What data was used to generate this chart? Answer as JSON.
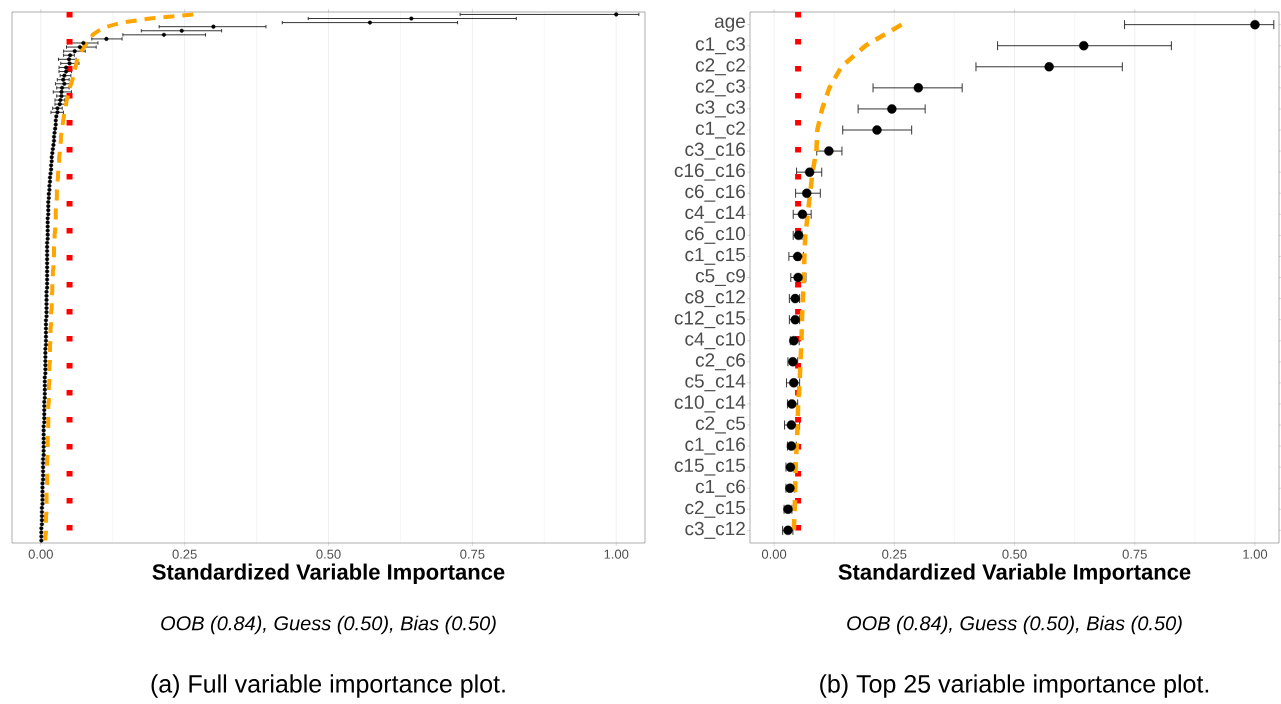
{
  "chart_data": [
    {
      "type": "scatter",
      "orientation": "horizontal",
      "xlabel": "Standardized Variable Importance",
      "annotations": [
        "OOB (0.84), Guess (0.50), Bias (0.50)",
        "(a) Full variable importance plot."
      ],
      "categories": [
        null,
        null,
        null,
        null,
        null,
        null,
        null,
        null,
        null,
        null,
        null,
        null,
        null,
        null,
        null,
        null,
        null,
        null,
        null,
        null,
        null,
        null,
        null,
        null,
        null,
        null,
        null,
        null,
        null,
        null,
        null,
        null,
        null,
        null,
        null,
        null,
        null,
        null,
        null,
        null,
        null,
        null,
        null,
        null,
        null,
        null,
        null,
        null,
        null,
        null,
        null,
        null,
        null,
        null,
        null,
        null,
        null,
        null,
        null,
        null,
        null,
        null,
        null,
        null,
        null,
        null,
        null,
        null,
        null,
        null,
        null,
        null,
        null,
        null,
        null,
        null,
        null,
        null,
        null,
        null,
        null,
        null,
        null,
        null,
        null,
        null,
        null,
        null,
        null,
        null,
        null,
        null,
        null,
        null,
        null,
        null,
        null,
        null,
        null,
        null,
        null,
        null,
        null,
        null,
        null,
        null,
        null,
        null,
        null,
        null,
        null,
        null,
        null,
        null,
        null,
        null,
        null,
        null,
        null,
        null,
        null,
        null,
        null,
        null,
        null,
        null,
        null,
        null,
        null,
        null
      ],
      "series": [
        {
          "type": "scatter",
          "color": "#000000",
          "marker": "circle",
          "values": [
            1.0,
            0.644,
            0.572,
            0.3,
            0.245,
            0.214,
            0.114,
            0.074,
            0.068,
            0.059,
            0.051,
            0.049,
            0.05,
            0.044,
            0.044,
            0.041,
            0.039,
            0.041,
            0.037,
            0.036,
            0.036,
            0.034,
            0.033,
            0.029,
            0.029,
            0.027,
            0.026,
            0.026,
            0.025,
            0.024,
            0.023,
            0.023,
            0.022,
            0.021,
            0.02,
            0.019,
            0.019,
            0.018,
            0.018,
            0.017,
            0.016,
            0.016,
            0.015,
            0.015,
            0.014,
            0.014,
            0.013,
            0.013,
            0.013,
            0.013,
            0.012,
            0.012,
            0.012,
            0.012,
            0.012,
            0.012,
            0.011,
            0.011,
            0.011,
            0.011,
            0.011,
            0.011,
            0.011,
            0.011,
            0.011,
            0.011,
            0.011,
            0.011,
            0.01,
            0.01,
            0.01,
            0.01,
            0.01,
            0.01,
            0.01,
            0.009,
            0.009,
            0.009,
            0.009,
            0.009,
            0.009,
            0.009,
            0.008,
            0.008,
            0.008,
            0.008,
            0.008,
            0.008,
            0.008,
            0.007,
            0.007,
            0.007,
            0.007,
            0.007,
            0.007,
            0.006,
            0.006,
            0.006,
            0.006,
            0.006,
            0.006,
            0.005,
            0.005,
            0.005,
            0.005,
            0.005,
            0.005,
            0.005,
            0.005,
            0.004,
            0.004,
            0.004,
            0.004,
            0.004,
            0.004,
            0.003,
            0.003,
            0.003,
            0.003,
            0.003,
            0.003,
            0.002,
            0.002,
            0.002,
            0.002,
            0.002,
            0.001,
            0.001,
            0.001,
            0.001
          ],
          "errors": [
            [
              0.728,
              1.04
            ],
            [
              0.464,
              0.827
            ],
            [
              0.419,
              0.725
            ],
            [
              0.205,
              0.392
            ],
            [
              0.174,
              0.315
            ],
            [
              0.142,
              0.287
            ],
            [
              0.088,
              0.142
            ],
            [
              0.046,
              0.1
            ],
            [
              0.044,
              0.097
            ],
            [
              0.039,
              0.078
            ],
            [
              0.039,
              0.059
            ],
            [
              0.03,
              0.062
            ],
            [
              0.034,
              0.067
            ],
            [
              0.031,
              0.054
            ],
            [
              0.031,
              0.054
            ],
            [
              0.033,
              0.053
            ],
            [
              0.028,
              0.05
            ],
            [
              0.025,
              0.054
            ],
            [
              0.027,
              0.05
            ],
            [
              0.021,
              0.054
            ],
            [
              0.027,
              0.047
            ],
            [
              0.024,
              0.042
            ],
            [
              0.024,
              0.044
            ],
            [
              0.02,
              0.038
            ],
            [
              0.017,
              0.04
            ],
            null,
            null,
            null,
            null,
            null,
            null,
            null,
            null,
            null,
            null,
            null,
            null,
            null,
            null,
            null,
            null,
            null,
            null,
            null,
            null,
            null,
            null,
            null,
            null,
            null,
            null,
            null,
            null,
            null,
            null,
            null,
            null,
            null,
            null,
            null,
            null,
            null,
            null,
            null,
            null,
            null,
            null,
            null,
            null,
            null,
            null,
            null,
            null,
            null,
            null,
            null,
            null,
            null,
            null,
            null,
            null,
            null,
            null,
            null,
            null,
            null,
            null,
            null,
            null,
            null,
            null,
            null,
            null,
            null,
            null,
            null,
            null,
            null,
            null,
            null,
            null,
            null,
            null,
            null,
            null,
            null,
            null,
            null,
            null,
            null,
            null,
            null,
            null,
            null,
            null,
            null,
            null,
            null,
            null,
            null,
            null,
            null,
            null,
            null,
            null,
            null,
            null,
            null,
            null,
            null
          ]
        },
        {
          "type": "line",
          "color": "#ffa500",
          "line_style": "dashed",
          "marker": "none",
          "values": [
            0.265,
            0.19,
            0.14,
            0.115,
            0.1,
            0.09,
            0.088,
            0.08,
            0.075,
            0.07,
            0.065,
            0.063,
            0.062,
            0.06,
            0.058,
            0.057,
            0.055,
            0.053,
            0.05,
            0.049,
            0.047,
            0.045,
            0.044,
            0.043,
            0.041,
            0.04,
            0.039,
            0.038,
            0.037,
            0.036,
            0.035,
            0.035,
            0.034,
            0.033,
            0.033,
            0.032,
            0.032,
            0.031,
            0.031,
            0.03,
            0.03,
            0.029,
            0.029,
            0.028,
            0.028,
            0.028,
            0.027,
            0.027,
            0.026,
            0.026,
            0.026,
            0.025,
            0.025,
            0.025,
            0.024,
            0.024,
            0.024,
            0.023,
            0.023,
            0.023,
            0.022,
            0.022,
            0.022,
            0.021,
            0.021,
            0.021,
            0.02,
            0.02,
            0.02,
            0.019,
            0.019,
            0.019,
            0.019,
            0.018,
            0.018,
            0.018,
            0.018,
            0.017,
            0.017,
            0.017,
            0.017,
            0.016,
            0.016,
            0.016,
            0.016,
            0.016,
            0.015,
            0.015,
            0.015,
            0.015,
            0.015,
            0.014,
            0.014,
            0.014,
            0.014,
            0.014,
            0.013,
            0.013,
            0.013,
            0.013,
            0.013,
            0.013,
            0.012,
            0.012,
            0.012,
            0.012,
            0.012,
            0.012,
            0.012,
            0.011,
            0.011,
            0.011,
            0.011,
            0.011,
            0.011,
            0.011,
            0.01,
            0.01,
            0.01,
            0.01,
            0.01,
            0.01,
            0.01,
            0.009,
            0.009,
            0.009,
            0.009,
            0.009,
            0.008,
            0.008
          ]
        }
      ],
      "ref_lines": [
        {
          "axis": "x",
          "value": 0.05,
          "color": "#ff0000",
          "line_style": "dotted"
        }
      ],
      "xlim": [
        -0.05,
        1.05
      ],
      "xticks": [
        {
          "value": 0,
          "label": "0.00"
        },
        {
          "value": 0.25,
          "label": "0.25"
        },
        {
          "value": 0.5,
          "label": "0.50"
        },
        {
          "value": 0.75,
          "label": "0.75"
        },
        {
          "value": 1,
          "label": "1.00"
        }
      ],
      "grid": "x",
      "tick_labels": "x"
    },
    {
      "type": "scatter",
      "orientation": "horizontal",
      "xlabel": "Standardized Variable Importance",
      "annotations": [
        "OOB (0.84), Guess (0.50), Bias (0.50)",
        "(b) Top 25 variable importance plot."
      ],
      "categories": [
        "age",
        "c1_c3",
        "c2_c2",
        "c2_c3",
        "c3_c3",
        "c1_c2",
        "c3_c16",
        "c16_c16",
        "c6_c16",
        "c4_c14",
        "c6_c10",
        "c1_c15",
        "c5_c9",
        "c8_c12",
        "c12_c15",
        "c4_c10",
        "c2_c6",
        "c5_c14",
        "c10_c14",
        "c2_c5",
        "c1_c16",
        "c15_c15",
        "c1_c6",
        "c2_c15",
        "c3_c12"
      ],
      "series": [
        {
          "type": "scatter",
          "color": "#000000",
          "marker": "circle",
          "values": [
            1.0,
            0.644,
            0.572,
            0.3,
            0.245,
            0.214,
            0.114,
            0.074,
            0.068,
            0.059,
            0.051,
            0.049,
            0.05,
            0.044,
            0.044,
            0.041,
            0.039,
            0.041,
            0.037,
            0.036,
            0.036,
            0.034,
            0.033,
            0.029,
            0.029
          ],
          "errors": [
            [
              0.728,
              1.04
            ],
            [
              0.464,
              0.827
            ],
            [
              0.419,
              0.725
            ],
            [
              0.205,
              0.392
            ],
            [
              0.174,
              0.315
            ],
            [
              0.142,
              0.287
            ],
            [
              0.088,
              0.142
            ],
            [
              0.046,
              0.1
            ],
            [
              0.044,
              0.097
            ],
            [
              0.039,
              0.078
            ],
            [
              0.039,
              0.059
            ],
            [
              0.03,
              0.062
            ],
            [
              0.034,
              0.067
            ],
            [
              0.031,
              0.054
            ],
            [
              0.031,
              0.054
            ],
            [
              0.033,
              0.053
            ],
            [
              0.028,
              0.05
            ],
            [
              0.025,
              0.054
            ],
            [
              0.027,
              0.05
            ],
            [
              0.021,
              0.054
            ],
            [
              0.027,
              0.047
            ],
            [
              0.024,
              0.042
            ],
            [
              0.024,
              0.044
            ],
            [
              0.02,
              0.038
            ],
            [
              0.017,
              0.04
            ]
          ]
        },
        {
          "type": "line",
          "color": "#ffa500",
          "line_style": "dashed",
          "marker": "none",
          "values": [
            0.265,
            0.19,
            0.14,
            0.115,
            0.1,
            0.09,
            0.088,
            0.08,
            0.075,
            0.07,
            0.065,
            0.063,
            0.062,
            0.06,
            0.058,
            0.057,
            0.055,
            0.053,
            0.05,
            0.049,
            0.047,
            0.045,
            0.044,
            0.043,
            0.041
          ]
        }
      ],
      "ref_lines": [
        {
          "axis": "x",
          "value": 0.05,
          "color": "#ff0000",
          "line_style": "dotted"
        }
      ],
      "xlim": [
        -0.05,
        1.05
      ],
      "xticks": [
        {
          "value": 0,
          "label": "0.00"
        },
        {
          "value": 0.25,
          "label": "0.25"
        },
        {
          "value": 0.5,
          "label": "0.50"
        },
        {
          "value": 0.75,
          "label": "0.75"
        },
        {
          "value": 1,
          "label": "1.00"
        }
      ],
      "grid": "x"
    }
  ]
}
